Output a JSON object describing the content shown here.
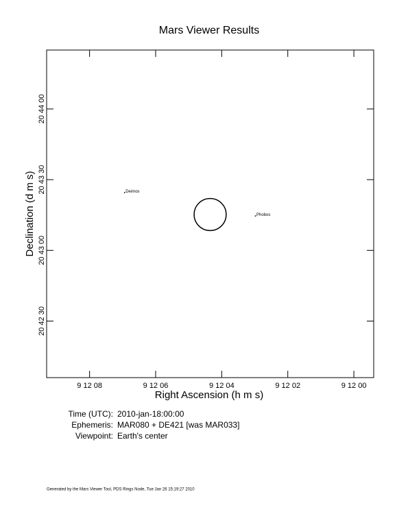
{
  "chart_data": {
    "type": "sky",
    "title": "Mars Viewer Results",
    "xlabel": "Right Ascension (h m s)",
    "ylabel": "Declination (d m s)",
    "xlim": [
      33129.3,
      33119.4
    ],
    "ylim": [
      74526,
      74665
    ],
    "xticks": [
      {
        "value": 33128,
        "label": "9 12 08"
      },
      {
        "value": 33126,
        "label": "9 12 06"
      },
      {
        "value": 33124,
        "label": "9 12 04"
      },
      {
        "value": 33122,
        "label": "9 12 02"
      },
      {
        "value": 33120,
        "label": "9 12 00"
      }
    ],
    "yticks": [
      {
        "value": 74550,
        "label": "20 42 30"
      },
      {
        "value": 74580,
        "label": "20 43 00"
      },
      {
        "value": 74610,
        "label": "20 43 30"
      },
      {
        "value": 74640,
        "label": "20 44 00"
      }
    ],
    "planet": {
      "x": 33124.35,
      "y": 74595.2,
      "diameter": 13.6
    },
    "points": [
      {
        "label": "Deimos",
        "x": 33126.94,
        "y": 74604.5
      },
      {
        "label": "Phobos",
        "x": 33122.98,
        "y": 74594.6
      }
    ],
    "info": [
      {
        "label": "Time (UTC):",
        "value": "2010-jan-18:00:00"
      },
      {
        "label": "Ephemeris:",
        "value": "MAR080 + DE421 [was MAR033]"
      },
      {
        "label": "Viewpoint:",
        "value": "Earth's center"
      }
    ],
    "footer": "Generated by the Mars Viewer Tool, PDS Rings Node, Tue Jan 26 15:19:27 2010"
  }
}
